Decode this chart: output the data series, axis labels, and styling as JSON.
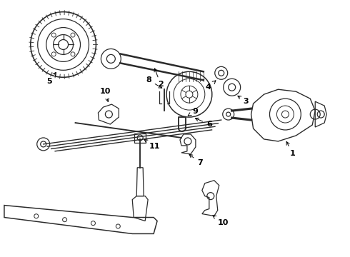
{
  "background_color": "#ffffff",
  "line_color": "#2a2a2a",
  "figsize": [
    4.9,
    3.6
  ],
  "dpi": 100
}
